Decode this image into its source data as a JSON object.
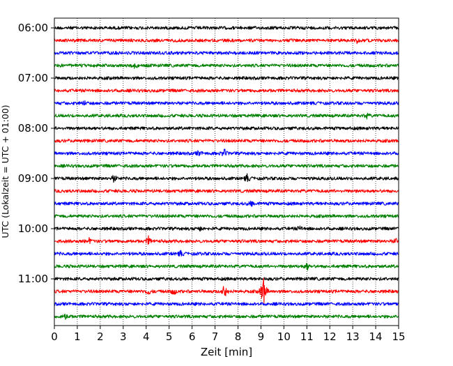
{
  "chart_data": {
    "type": "line",
    "title": "",
    "xlabel": "Zeit  [min]",
    "ylabel": "UTC (Lokalzeit = UTC + 01:00)",
    "xlim": [
      0,
      15
    ],
    "x_ticks": [
      "0",
      "1",
      "2",
      "3",
      "4",
      "5",
      "6",
      "7",
      "8",
      "9",
      "10",
      "11",
      "12",
      "13",
      "14",
      "15"
    ],
    "y_tick_labels": [
      "06:00",
      "07:00",
      "08:00",
      "09:00",
      "10:00",
      "11:00"
    ],
    "grid": "vertical dotted at each minute",
    "trace_colors": [
      "#000000",
      "#ff0000",
      "#0000ff",
      "#008000"
    ],
    "traces": [
      {
        "start": "06:00",
        "color": "#000000",
        "events": []
      },
      {
        "start": "06:15",
        "color": "#ff0000",
        "events": [
          {
            "t": 13.2,
            "amp": 0.25
          }
        ]
      },
      {
        "start": "06:30",
        "color": "#0000ff",
        "events": []
      },
      {
        "start": "06:45",
        "color": "#008000",
        "events": [
          {
            "t": 3.5,
            "amp": 0.2
          }
        ]
      },
      {
        "start": "07:00",
        "color": "#000000",
        "events": []
      },
      {
        "start": "07:15",
        "color": "#ff0000",
        "events": []
      },
      {
        "start": "07:30",
        "color": "#0000ff",
        "events": [
          {
            "t": 1.3,
            "amp": 0.2
          }
        ]
      },
      {
        "start": "07:45",
        "color": "#008000",
        "events": [
          {
            "t": 13.6,
            "amp": 0.2
          }
        ]
      },
      {
        "start": "08:00",
        "color": "#000000",
        "events": []
      },
      {
        "start": "08:15",
        "color": "#ff0000",
        "events": []
      },
      {
        "start": "08:30",
        "color": "#0000ff",
        "events": [
          {
            "t": 6.3,
            "amp": 0.25
          },
          {
            "t": 7.4,
            "amp": 0.35
          }
        ]
      },
      {
        "start": "08:45",
        "color": "#008000",
        "events": []
      },
      {
        "start": "09:00",
        "color": "#000000",
        "events": [
          {
            "t": 2.6,
            "amp": 0.35
          },
          {
            "t": 8.4,
            "amp": 0.35
          }
        ]
      },
      {
        "start": "09:15",
        "color": "#ff0000",
        "events": []
      },
      {
        "start": "09:30",
        "color": "#0000ff",
        "events": [
          {
            "t": 8.6,
            "amp": 0.3
          }
        ]
      },
      {
        "start": "09:45",
        "color": "#008000",
        "events": []
      },
      {
        "start": "10:00",
        "color": "#000000",
        "events": [
          {
            "t": 6.3,
            "amp": 0.25
          },
          {
            "t": 10.7,
            "amp": 0.25
          }
        ]
      },
      {
        "start": "10:15",
        "color": "#ff0000",
        "events": [
          {
            "t": 1.5,
            "amp": 0.25
          },
          {
            "t": 4.1,
            "amp": 0.4
          },
          {
            "t": 14.9,
            "amp": 0.25
          }
        ]
      },
      {
        "start": "10:30",
        "color": "#0000ff",
        "events": [
          {
            "t": 5.5,
            "amp": 0.25
          }
        ]
      },
      {
        "start": "10:45",
        "color": "#008000",
        "events": [
          {
            "t": 11.0,
            "amp": 0.35
          }
        ]
      },
      {
        "start": "11:00",
        "color": "#000000",
        "events": []
      },
      {
        "start": "11:15",
        "color": "#ff0000",
        "events": [
          {
            "t": 4.1,
            "amp": 0.3
          },
          {
            "t": 5.2,
            "amp": 0.35
          },
          {
            "t": 7.4,
            "amp": 0.8
          },
          {
            "t": 9.1,
            "amp": 1.7
          }
        ]
      },
      {
        "start": "11:30",
        "color": "#0000ff",
        "events": []
      },
      {
        "start": "11:45",
        "color": "#008000",
        "events": [
          {
            "t": 0.5,
            "amp": 0.3
          }
        ]
      }
    ]
  }
}
